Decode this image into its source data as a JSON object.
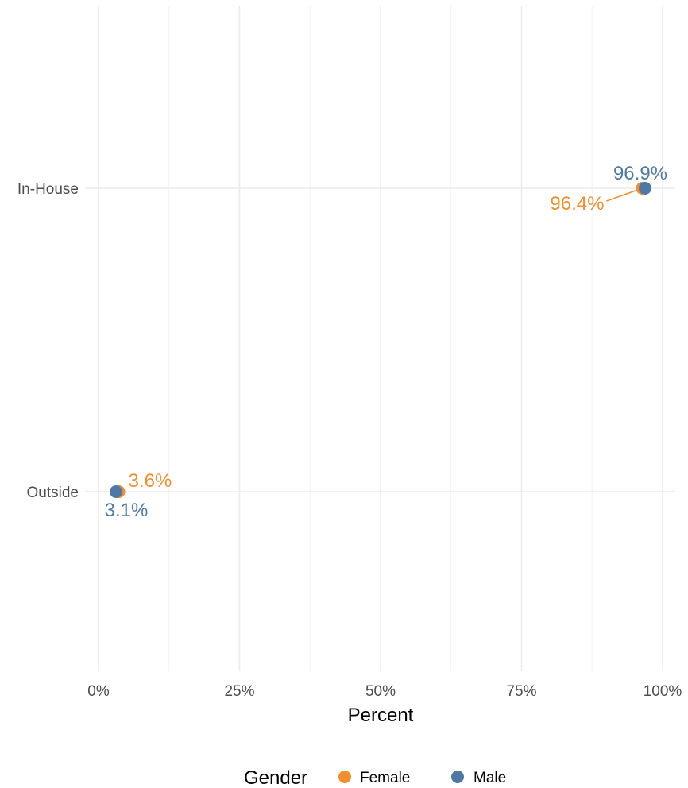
{
  "chart_data": {
    "type": "scatter",
    "title": "",
    "xlabel": "Percent",
    "ylabel": "",
    "xlim": [
      0,
      100
    ],
    "x_ticks": [
      0,
      25,
      50,
      75,
      100
    ],
    "x_tick_labels": [
      "0%",
      "25%",
      "50%",
      "75%",
      "100%"
    ],
    "categories": [
      "In-House",
      "Outside"
    ],
    "series": [
      {
        "name": "Female",
        "color": "#F28E2B",
        "values": [
          96.4,
          3.6
        ],
        "labels": [
          "96.4%",
          "3.6%"
        ]
      },
      {
        "name": "Male",
        "color": "#4E79A7",
        "values": [
          96.9,
          3.1
        ],
        "labels": [
          "96.9%",
          "3.1%"
        ]
      }
    ],
    "grid": true,
    "legend": {
      "title": "Gender",
      "position": "bottom",
      "entries": [
        "Female",
        "Male"
      ]
    }
  }
}
